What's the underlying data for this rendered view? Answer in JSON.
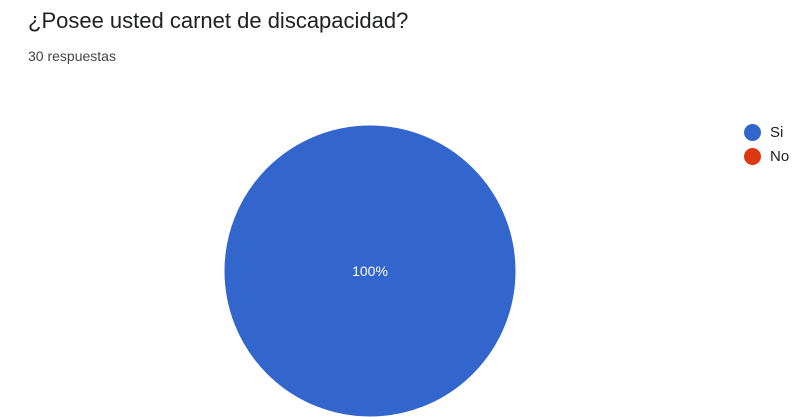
{
  "question": {
    "title": "¿Posee usted carnet de discapacidad?",
    "responses": "30 respuestas"
  },
  "chart_data": {
    "type": "pie",
    "categories": [
      "Si",
      "No"
    ],
    "values": [
      30,
      0
    ],
    "slice_labels": [
      "100%",
      ""
    ],
    "colors": [
      "#3366cc",
      "#dc3912"
    ],
    "legend_position": "right"
  }
}
